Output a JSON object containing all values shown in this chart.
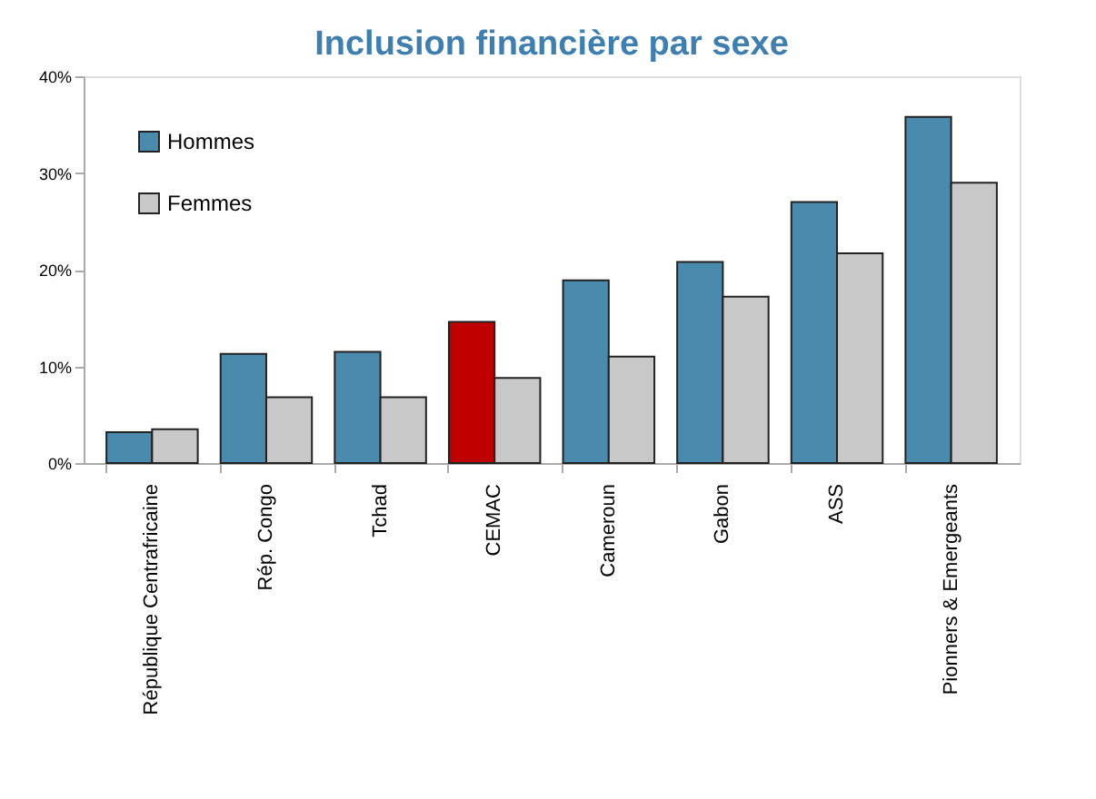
{
  "chart_data": {
    "type": "bar",
    "title": "Inclusion financière par sexe",
    "categories": [
      "République Centrafricaine",
      "Rép. Congo",
      "Tchad",
      "CEMAC",
      "Cameroun",
      "Gabon",
      "ASS",
      "Pionners & Emergeants"
    ],
    "series": [
      {
        "name": "Hommes",
        "color": "#4a8aad",
        "colors": [
          "#4a8aad",
          "#4a8aad",
          "#4a8aad",
          "#c00000",
          "#4a8aad",
          "#4a8aad",
          "#4a8aad",
          "#4a8aad"
        ],
        "values": [
          3.2,
          11.3,
          11.5,
          14.6,
          18.9,
          20.8,
          27.0,
          35.8
        ]
      },
      {
        "name": "Femmes",
        "color": "#c8c8c8",
        "values": [
          3.5,
          6.8,
          6.8,
          8.8,
          11.0,
          17.2,
          21.7,
          29.0
        ]
      }
    ],
    "ylim": [
      0,
      40
    ],
    "yticks": [
      {
        "value": 0,
        "label": "0%"
      },
      {
        "value": 10,
        "label": "10%"
      },
      {
        "value": 20,
        "label": "20%"
      },
      {
        "value": 30,
        "label": "30%"
      },
      {
        "value": 40,
        "label": "40%"
      }
    ],
    "grid": false,
    "legend": "top left"
  }
}
